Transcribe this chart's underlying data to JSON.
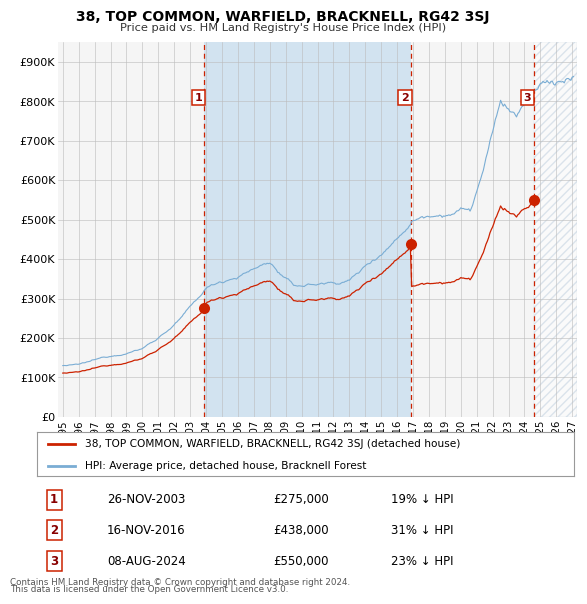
{
  "title": "38, TOP COMMON, WARFIELD, BRACKNELL, RG42 3SJ",
  "subtitle": "Price paid vs. HM Land Registry's House Price Index (HPI)",
  "ylabel_ticks": [
    "£0",
    "£100K",
    "£200K",
    "£300K",
    "£400K",
    "£500K",
    "£600K",
    "£700K",
    "£800K",
    "£900K"
  ],
  "ytick_values": [
    0,
    100000,
    200000,
    300000,
    400000,
    500000,
    600000,
    700000,
    800000,
    900000
  ],
  "ylim": [
    0,
    950000
  ],
  "xlim_start": 1994.7,
  "xlim_end": 2027.3,
  "legend_line1": "38, TOP COMMON, WARFIELD, BRACKNELL, RG42 3SJ (detached house)",
  "legend_line2": "HPI: Average price, detached house, Bracknell Forest",
  "transactions": [
    {
      "num": 1,
      "date": "26-NOV-2003",
      "price": 275000,
      "pct": "19%",
      "x": 2003.9
    },
    {
      "num": 2,
      "date": "16-NOV-2016",
      "price": 438000,
      "pct": "31%",
      "x": 2016.88
    },
    {
      "num": 3,
      "date": "08-AUG-2024",
      "price": 550000,
      "pct": "23%",
      "x": 2024.58
    }
  ],
  "footnote1": "Contains HM Land Registry data © Crown copyright and database right 2024.",
  "footnote2": "This data is licensed under the Open Government Licence v3.0.",
  "hpi_color": "#7aadd4",
  "price_color": "#cc2200",
  "bg_color": "#ddeeff",
  "plot_bg": "#f5f5f5",
  "grid_color": "#bbbbbb",
  "fill_color": "#cce0f0",
  "dashed_vline_color": "#cc2200",
  "hatch_color": "#bbccdd"
}
